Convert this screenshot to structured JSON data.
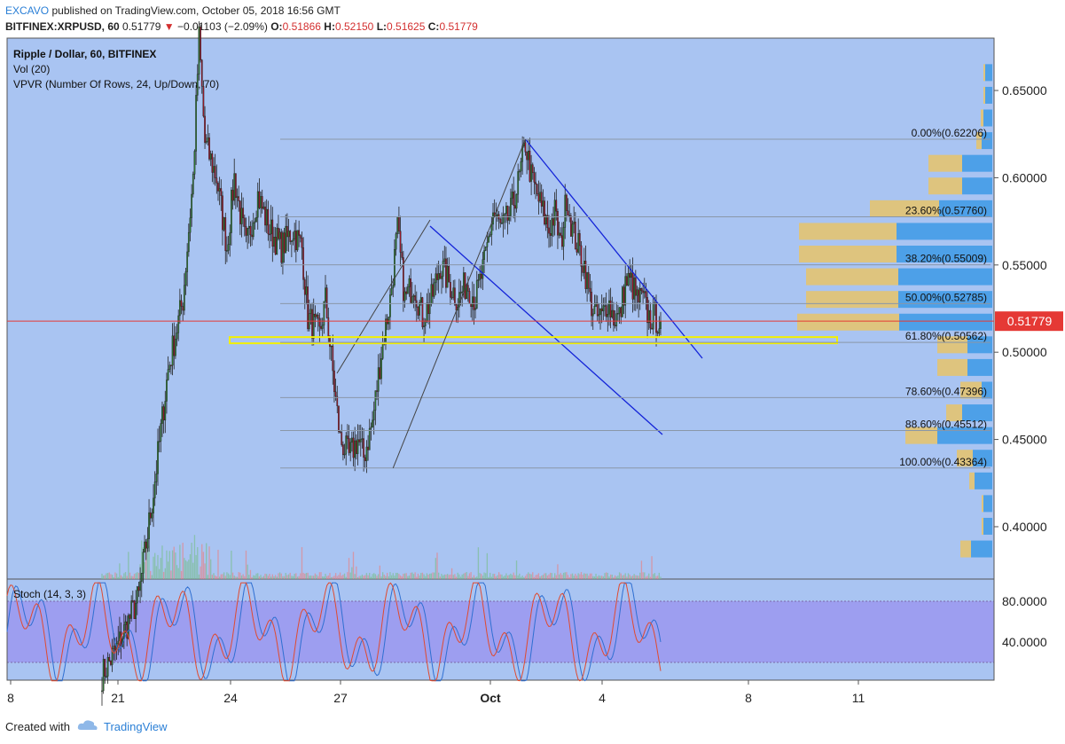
{
  "header": {
    "author": "EXCAVO",
    "published_text": "published on TradingView.com, October 05, 2018 16:56 GMT",
    "symbol": "BITFINEX:XRPUSD, 60",
    "last": "0.51779",
    "change": "−0.01103 (−2.09%)",
    "O": "0.51866",
    "H": "0.52150",
    "L": "0.51625",
    "C": "0.51779"
  },
  "legend": {
    "line1": "Ripple / Dollar, 60, BITFINEX",
    "line2": "Vol (20)",
    "line3": "VPVR (Number Of Rows, 24, Up/Down, 70)",
    "stoch": "Stoch (14, 3, 3)"
  },
  "footer": {
    "created": "Created with",
    "brand": "TradingView"
  },
  "colors": {
    "plot_bg": "#a9c4f2",
    "stoch_band": "#9d9ef0",
    "up": "#2e7d32",
    "down": "#a0182a",
    "fib_text": "#111111",
    "channel": "#1424d8",
    "vol_up": "#7fbf9a",
    "vol_down": "#e08a92",
    "vp_up": "#e8c46a",
    "vp_down": "#3d9ae6",
    "price_tag": "#e53935",
    "zone": "#f3f000"
  },
  "chart_data": {
    "type": "candlestick",
    "symbol": "BITFINEX:XRPUSD",
    "timeframe": "60",
    "price_ylim": [
      0.37,
      0.68
    ],
    "price_ticks": [
      "0.65000",
      "0.60000",
      "0.55000",
      "0.50000",
      "0.45000",
      "0.40000"
    ],
    "x_ticks": [
      "8",
      "21",
      "24",
      "27",
      "Oct",
      "4",
      "8",
      "11"
    ],
    "current_price": "0.51779",
    "current_level": 0.51779,
    "price_path": [
      [
        0,
        0.315
      ],
      [
        10,
        0.33
      ],
      [
        25,
        0.36
      ],
      [
        35,
        0.42
      ],
      [
        45,
        0.49
      ],
      [
        55,
        0.53
      ],
      [
        62,
        0.6
      ],
      [
        66,
        0.68
      ],
      [
        70,
        0.62
      ],
      [
        78,
        0.6
      ],
      [
        85,
        0.56
      ],
      [
        90,
        0.6
      ],
      [
        98,
        0.56
      ],
      [
        106,
        0.59
      ],
      [
        114,
        0.57
      ],
      [
        122,
        0.56
      ],
      [
        130,
        0.57
      ],
      [
        136,
        0.56
      ],
      [
        140,
        0.52
      ],
      [
        148,
        0.51
      ],
      [
        152,
        0.53
      ],
      [
        158,
        0.48
      ],
      [
        162,
        0.45
      ],
      [
        168,
        0.44
      ],
      [
        174,
        0.45
      ],
      [
        178,
        0.44
      ],
      [
        184,
        0.46
      ],
      [
        190,
        0.5
      ],
      [
        196,
        0.53
      ],
      [
        201,
        0.57
      ],
      [
        206,
        0.53
      ],
      [
        212,
        0.54
      ],
      [
        218,
        0.52
      ],
      [
        224,
        0.53
      ],
      [
        230,
        0.55
      ],
      [
        236,
        0.54
      ],
      [
        242,
        0.53
      ],
      [
        248,
        0.54
      ],
      [
        254,
        0.53
      ],
      [
        260,
        0.55
      ],
      [
        266,
        0.58
      ],
      [
        272,
        0.57
      ],
      [
        278,
        0.58
      ],
      [
        284,
        0.6
      ],
      [
        288,
        0.62
      ],
      [
        292,
        0.6
      ],
      [
        296,
        0.59
      ],
      [
        300,
        0.58
      ],
      [
        304,
        0.57
      ],
      [
        308,
        0.58
      ],
      [
        312,
        0.56
      ],
      [
        316,
        0.59
      ],
      [
        320,
        0.57
      ],
      [
        324,
        0.56
      ],
      [
        328,
        0.55
      ],
      [
        332,
        0.53
      ],
      [
        336,
        0.52
      ],
      [
        340,
        0.52
      ],
      [
        344,
        0.53
      ],
      [
        348,
        0.52
      ],
      [
        352,
        0.52
      ],
      [
        356,
        0.54
      ],
      [
        360,
        0.54
      ],
      [
        364,
        0.53
      ],
      [
        368,
        0.53
      ],
      [
        372,
        0.52
      ],
      [
        376,
        0.52
      ],
      [
        380,
        0.517
      ]
    ],
    "fib_start": 0.43364,
    "fib_end": 0.62206,
    "fib_levels": [
      {
        "label": "0.00%(0.62206)",
        "value": 0.62206
      },
      {
        "label": "23.60%(0.57760)",
        "value": 0.5776
      },
      {
        "label": "38.20%(0.55009)",
        "value": 0.55009
      },
      {
        "label": "50.00%(0.52785)",
        "value": 0.52785
      },
      {
        "label": "61.80%(0.50562)",
        "value": 0.50562
      },
      {
        "label": "78.60%(0.47396)",
        "value": 0.47396
      },
      {
        "label": "88.60%(0.45512)",
        "value": 0.45512
      },
      {
        "label": "100.00%(0.43364)",
        "value": 0.43364
      }
    ],
    "volume_profile_rows": [
      {
        "price": 0.66,
        "up": 2,
        "down": 8
      },
      {
        "price": 0.647,
        "up": 2,
        "down": 8
      },
      {
        "price": 0.634,
        "up": 3,
        "down": 10
      },
      {
        "price": 0.621,
        "up": 6,
        "down": 12
      },
      {
        "price": 0.608,
        "up": 38,
        "down": 34
      },
      {
        "price": 0.595,
        "up": 38,
        "down": 34
      },
      {
        "price": 0.582,
        "up": 78,
        "down": 60
      },
      {
        "price": 0.569,
        "up": 110,
        "down": 108
      },
      {
        "price": 0.556,
        "up": 110,
        "down": 108
      },
      {
        "price": 0.543,
        "up": 104,
        "down": 106
      },
      {
        "price": 0.53,
        "up": 104,
        "down": 106
      },
      {
        "price": 0.517,
        "up": 115,
        "down": 105
      },
      {
        "price": 0.504,
        "up": 34,
        "down": 28
      },
      {
        "price": 0.491,
        "up": 34,
        "down": 28
      },
      {
        "price": 0.478,
        "up": 24,
        "down": 12
      },
      {
        "price": 0.465,
        "up": 18,
        "down": 34
      },
      {
        "price": 0.452,
        "up": 36,
        "down": 62
      },
      {
        "price": 0.439,
        "up": 18,
        "down": 22
      },
      {
        "price": 0.426,
        "up": 6,
        "down": 20
      },
      {
        "price": 0.413,
        "up": 2,
        "down": 10
      },
      {
        "price": 0.4,
        "up": 2,
        "down": 10
      },
      {
        "price": 0.387,
        "up": 12,
        "down": 24
      }
    ],
    "stoch": {
      "name": "Stoch (14, 3, 3)",
      "ylim": [
        0,
        100
      ],
      "ticks": [
        "80.0000",
        "40.0000"
      ],
      "band": [
        20,
        80
      ]
    }
  }
}
